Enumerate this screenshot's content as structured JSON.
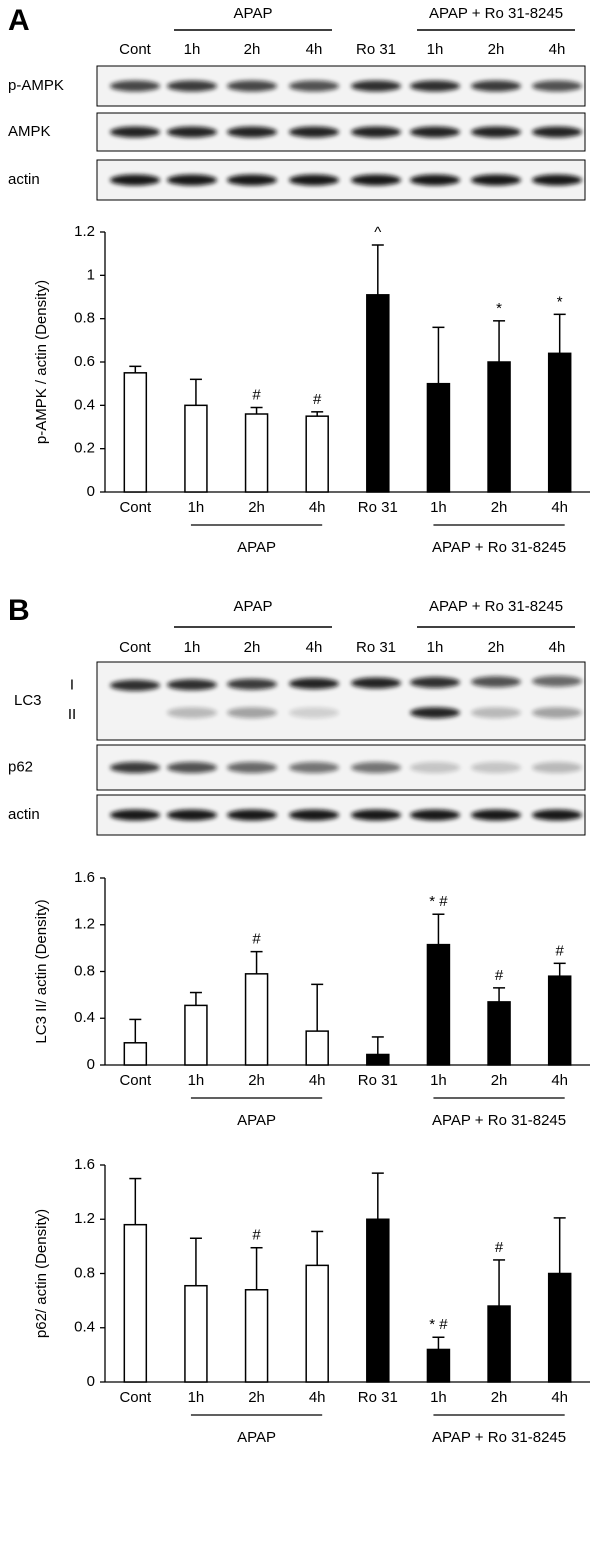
{
  "panels": [
    {
      "letter": "A",
      "blot": {
        "groups": [
          "APAP",
          "APAP + Ro 31-8245"
        ],
        "lanes": [
          "Cont",
          "1h",
          "2h",
          "4h",
          "Ro 31",
          "1h",
          "2h",
          "4h"
        ],
        "rows": [
          "p-AMPK",
          "AMPK",
          "actin"
        ]
      }
    },
    {
      "letter": "B",
      "blot": {
        "groups": [
          "APAP",
          "APAP + Ro 31-8245"
        ],
        "lanes": [
          "Cont",
          "1h",
          "2h",
          "4h",
          "Ro 31",
          "1h",
          "2h",
          "4h"
        ],
        "rows": [
          "LC3",
          "p62",
          "actin"
        ],
        "sublabels": [
          "I",
          "II"
        ]
      }
    }
  ],
  "chart_data": [
    {
      "type": "bar",
      "y_label": "p-AMPK / actin (Density)",
      "categories": [
        "Cont",
        "1h",
        "2h",
        "4h",
        "Ro 31",
        "1h",
        "2h",
        "4h"
      ],
      "groups": [
        "APAP",
        "APAP + Ro 31-8245"
      ],
      "values": [
        0.55,
        0.4,
        0.36,
        0.35,
        0.91,
        0.5,
        0.6,
        0.64
      ],
      "errors": [
        0.03,
        0.12,
        0.03,
        0.02,
        0.23,
        0.26,
        0.19,
        0.18
      ],
      "colors": [
        "#ffffff",
        "#ffffff",
        "#ffffff",
        "#ffffff",
        "#000000",
        "#000000",
        "#000000",
        "#000000"
      ],
      "annotations": [
        null,
        null,
        "#",
        "#",
        "^",
        null,
        "*",
        "*"
      ],
      "ylim": [
        0,
        1.2
      ],
      "yticks": [
        0,
        0.2,
        0.4,
        0.6,
        0.8,
        1,
        1.2
      ]
    },
    {
      "type": "bar",
      "y_label": "LC3 II/ actin (Density)",
      "categories": [
        "Cont",
        "1h",
        "2h",
        "4h",
        "Ro 31",
        "1h",
        "2h",
        "4h"
      ],
      "groups": [
        "APAP",
        "APAP + Ro 31-8245"
      ],
      "values": [
        0.19,
        0.51,
        0.78,
        0.29,
        0.09,
        1.03,
        0.54,
        0.76
      ],
      "errors": [
        0.2,
        0.11,
        0.19,
        0.4,
        0.15,
        0.26,
        0.12,
        0.11
      ],
      "colors": [
        "#ffffff",
        "#ffffff",
        "#ffffff",
        "#ffffff",
        "#000000",
        "#000000",
        "#000000",
        "#000000"
      ],
      "annotations": [
        null,
        null,
        "#",
        null,
        null,
        "* #",
        "#",
        "#"
      ],
      "ylim": [
        0,
        1.6
      ],
      "yticks": [
        0,
        0.4,
        0.8,
        1.2,
        1.6
      ]
    },
    {
      "type": "bar",
      "y_label": "p62/ actin (Density)",
      "categories": [
        "Cont",
        "1h",
        "2h",
        "4h",
        "Ro 31",
        "1h",
        "2h",
        "4h"
      ],
      "groups": [
        "APAP",
        "APAP + Ro 31-8245"
      ],
      "values": [
        1.16,
        0.71,
        0.68,
        0.86,
        1.2,
        0.24,
        0.56,
        0.8
      ],
      "errors": [
        0.34,
        0.35,
        0.31,
        0.25,
        0.34,
        0.09,
        0.34,
        0.41
      ],
      "colors": [
        "#ffffff",
        "#ffffff",
        "#ffffff",
        "#ffffff",
        "#000000",
        "#000000",
        "#000000",
        "#000000"
      ],
      "annotations": [
        null,
        null,
        "#",
        null,
        null,
        "* #",
        "#",
        null
      ],
      "ylim": [
        0,
        1.6
      ],
      "yticks": [
        0,
        0.4,
        0.8,
        1.2,
        1.6
      ]
    }
  ]
}
